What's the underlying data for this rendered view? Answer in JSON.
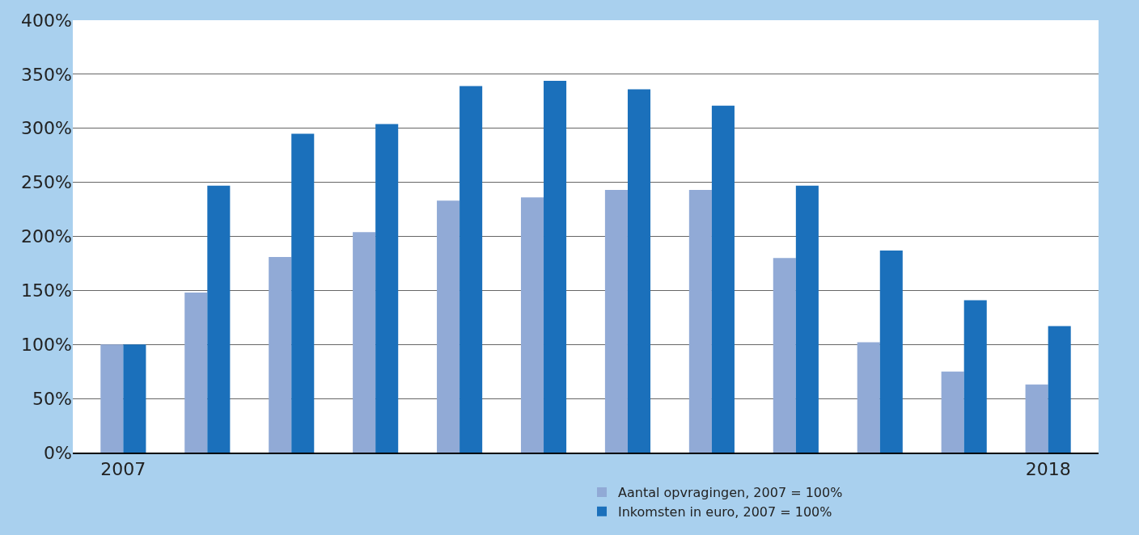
{
  "chart_data": {
    "type": "bar",
    "categories": [
      "2007",
      null,
      null,
      null,
      null,
      null,
      null,
      null,
      null,
      null,
      null,
      "2018"
    ],
    "series": [
      {
        "name": "Aantal opvragingen, 2007 = 100%",
        "color": "#91aad6",
        "values": [
          100,
          148,
          181,
          204,
          233,
          236,
          243,
          243,
          180,
          102,
          75,
          63
        ]
      },
      {
        "name": "Inkomsten in euro, 2007 = 100%",
        "color": "#1b70bb",
        "values": [
          100,
          247,
          295,
          304,
          339,
          344,
          336,
          321,
          247,
          187,
          141,
          117
        ]
      }
    ],
    "ylim": [
      0,
      400
    ],
    "yticks": [
      {
        "value": 0,
        "label": "0%"
      },
      {
        "value": 50,
        "label": "50%"
      },
      {
        "value": 100,
        "label": "100%"
      },
      {
        "value": 150,
        "label": "150%"
      },
      {
        "value": 200,
        "label": "200%"
      },
      {
        "value": 250,
        "label": "250%"
      },
      {
        "value": 300,
        "label": "300%"
      },
      {
        "value": 350,
        "label": "350%"
      },
      {
        "value": 400,
        "label": "400%"
      }
    ],
    "grid": "y",
    "legend": "bottom"
  }
}
